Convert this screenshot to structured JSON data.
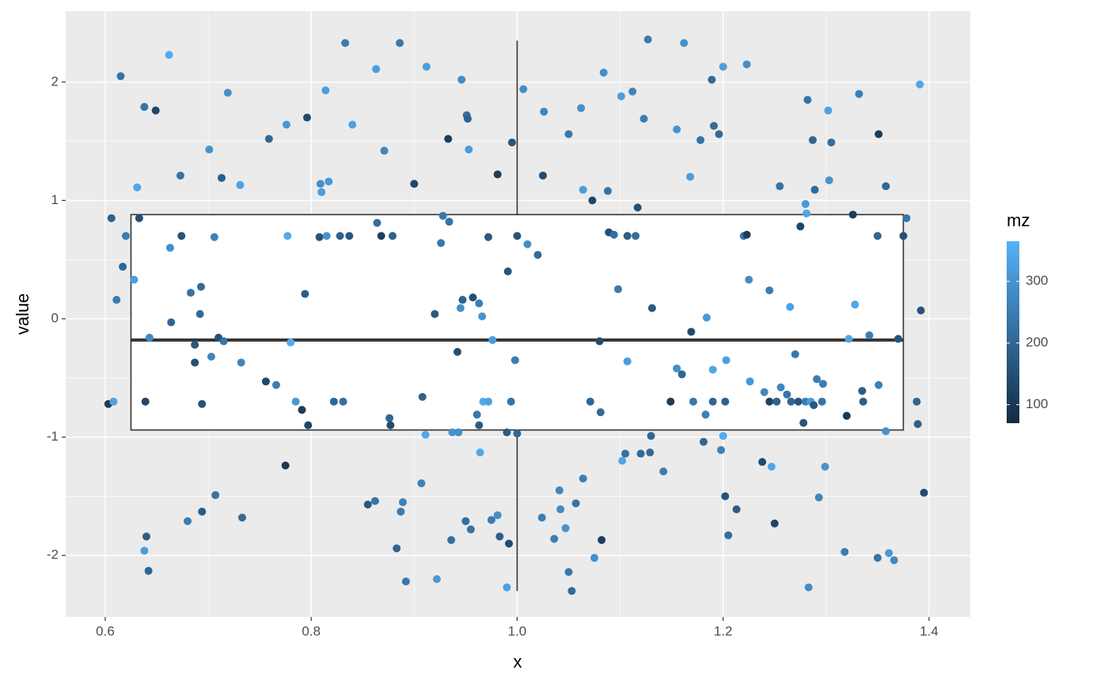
{
  "chart_data": {
    "type": "scatter",
    "xlabel": "x",
    "ylabel": "value",
    "xlim": [
      0.5616,
      1.44
    ],
    "ylim": [
      -2.52,
      2.6
    ],
    "xticks": [
      0.6,
      0.8,
      {
        "value": 1,
        "label": "1.0"
      },
      1.2,
      1.4
    ],
    "yticks": [
      -2,
      -1,
      0,
      1,
      2
    ],
    "grid": true,
    "minor_grid": true,
    "box": {
      "x": 1,
      "width": 0.75,
      "lower": -0.94,
      "median": -0.18,
      "upper": 0.88,
      "ymin": -2.3,
      "ymax": 2.35
    },
    "color_scale": {
      "name": "mz",
      "lim": [
        70,
        365
      ],
      "ticks": [
        100,
        200,
        300
      ],
      "low": "#132B43",
      "high": "#56B1F7"
    },
    "x": [
      0.603,
      0.606,
      0.608,
      0.611,
      0.615,
      0.617,
      0.62,
      0.628,
      0.631,
      0.633,
      0.638,
      0.638,
      0.639,
      0.64,
      0.642,
      0.643,
      0.649,
      0.662,
      0.663,
      0.664,
      0.673,
      0.674,
      0.68,
      0.683,
      0.687,
      0.687,
      0.692,
      0.693,
      0.694,
      0.694,
      0.701,
      0.703,
      0.706,
      0.707,
      0.71,
      0.713,
      0.715,
      0.719,
      0.731,
      0.732,
      0.733,
      0.756,
      0.759,
      0.766,
      0.775,
      0.776,
      0.777,
      0.78,
      0.785,
      0.791,
      0.794,
      0.796,
      0.797,
      0.808,
      0.809,
      0.81,
      0.814,
      0.815,
      0.817,
      0.822,
      0.828,
      0.831,
      0.833,
      0.837,
      0.84,
      0.855,
      0.862,
      0.863,
      0.864,
      0.868,
      0.871,
      0.876,
      0.877,
      0.879,
      0.883,
      0.886,
      0.887,
      0.889,
      0.892,
      0.9,
      0.907,
      0.908,
      0.911,
      0.912,
      0.92,
      0.922,
      0.926,
      0.928,
      0.933,
      0.934,
      0.936,
      0.937,
      0.942,
      0.943,
      0.945,
      0.946,
      0.947,
      0.95,
      0.951,
      0.952,
      0.953,
      0.955,
      0.957,
      0.961,
      0.963,
      0.963,
      0.964,
      0.966,
      0.967,
      0.972,
      0.972,
      0.975,
      0.976,
      0.981,
      0.981,
      0.983,
      0.99,
      0.99,
      0.991,
      0.992,
      0.994,
      0.995,
      0.998,
      1.0,
      1.0,
      1.006,
      1.01,
      1.02,
      1.024,
      1.025,
      1.026,
      1.036,
      1.041,
      1.042,
      1.047,
      1.05,
      1.05,
      1.053,
      1.057,
      1.062,
      1.064,
      1.064,
      1.071,
      1.073,
      1.075,
      1.08,
      1.081,
      1.082,
      1.084,
      1.088,
      1.089,
      1.094,
      1.098,
      1.101,
      1.102,
      1.105,
      1.107,
      1.107,
      1.112,
      1.115,
      1.117,
      1.12,
      1.123,
      1.127,
      1.129,
      1.13,
      1.131,
      1.142,
      1.149,
      1.155,
      1.155,
      1.16,
      1.162,
      1.168,
      1.169,
      1.171,
      1.178,
      1.181,
      1.183,
      1.184,
      1.189,
      1.19,
      1.191,
      1.19,
      1.196,
      1.198,
      1.2,
      1.2,
      1.202,
      1.202,
      1.203,
      1.205,
      1.213,
      1.22,
      1.223,
      1.223,
      1.225,
      1.226,
      1.238,
      1.24,
      1.245,
      1.245,
      1.247,
      1.25,
      1.252,
      1.255,
      1.256,
      1.262,
      1.265,
      1.266,
      1.27,
      1.273,
      1.275,
      1.278,
      1.28,
      1.28,
      1.281,
      1.282,
      1.283,
      1.285,
      1.287,
      1.288,
      1.289,
      1.291,
      1.293,
      1.296,
      1.297,
      1.299,
      1.302,
      1.303,
      1.305,
      1.318,
      1.32,
      1.322,
      1.326,
      1.328,
      1.332,
      1.335,
      1.336,
      1.342,
      1.35,
      1.35,
      1.351,
      1.351,
      1.358,
      1.358,
      1.361,
      1.366,
      1.37,
      1.375,
      1.378,
      1.388,
      1.389,
      1.391,
      1.392,
      1.395
    ],
    "values": [
      -0.72,
      0.85,
      -0.7,
      0.16,
      2.05,
      0.44,
      0.7,
      0.33,
      1.11,
      0.85,
      1.79,
      -1.96,
      -0.7,
      -1.84,
      -2.13,
      -0.16,
      1.76,
      2.23,
      0.6,
      -0.03,
      1.21,
      0.7,
      -1.71,
      0.22,
      -0.22,
      -0.37,
      0.04,
      0.27,
      -1.63,
      -0.72,
      1.43,
      -0.32,
      0.69,
      -1.49,
      -0.16,
      1.19,
      -0.19,
      1.91,
      1.13,
      -0.37,
      -1.68,
      -0.53,
      1.52,
      -0.56,
      -1.24,
      1.64,
      0.7,
      -0.2,
      -0.7,
      -0.77,
      0.21,
      1.7,
      -0.9,
      0.69,
      1.14,
      1.07,
      1.93,
      0.7,
      1.16,
      -0.7,
      0.7,
      -0.7,
      2.33,
      0.7,
      1.64,
      -1.57,
      -1.54,
      2.11,
      0.81,
      0.7,
      1.42,
      -0.84,
      -0.9,
      0.7,
      -1.94,
      2.33,
      -1.63,
      -1.55,
      -2.22,
      1.14,
      -1.39,
      -0.66,
      -0.98,
      2.13,
      0.04,
      -2.2,
      0.64,
      0.87,
      1.52,
      0.82,
      -1.87,
      -0.96,
      -0.28,
      -0.96,
      0.09,
      2.02,
      0.16,
      -1.71,
      1.72,
      1.69,
      1.43,
      -1.78,
      0.18,
      -0.81,
      -0.9,
      0.13,
      -1.13,
      0.02,
      -0.7,
      0.69,
      -0.7,
      -1.7,
      -0.18,
      1.22,
      -1.66,
      -1.84,
      -2.27,
      -0.96,
      0.4,
      -1.9,
      -0.7,
      1.49,
      -0.35,
      0.7,
      -0.97,
      1.94,
      0.63,
      0.54,
      -1.68,
      1.21,
      1.75,
      -1.86,
      -1.45,
      -1.61,
      -1.77,
      1.56,
      -2.14,
      -2.3,
      -1.56,
      1.78,
      -1.35,
      1.09,
      -0.7,
      1.0,
      -2.02,
      -0.19,
      -0.79,
      -1.87,
      2.08,
      1.08,
      0.73,
      0.71,
      0.25,
      1.88,
      -1.2,
      -1.14,
      -0.36,
      0.7,
      1.92,
      0.7,
      0.94,
      -1.14,
      1.69,
      2.36,
      -1.13,
      -0.99,
      0.09,
      -1.29,
      -0.7,
      -0.42,
      1.6,
      -0.47,
      2.33,
      1.2,
      -0.11,
      -0.7,
      1.51,
      -1.04,
      -0.81,
      0.01,
      2.02,
      -0.7,
      1.63,
      -0.43,
      1.56,
      -1.11,
      2.13,
      -0.99,
      -1.5,
      -0.7,
      -0.35,
      -1.83,
      -1.61,
      0.7,
      0.71,
      2.15,
      0.33,
      -0.53,
      -1.21,
      -0.62,
      -0.7,
      0.24,
      -1.25,
      -1.73,
      -0.7,
      1.12,
      -0.58,
      -0.64,
      0.1,
      -0.7,
      -0.3,
      -0.7,
      0.78,
      -0.88,
      0.97,
      -0.7,
      0.89,
      1.85,
      -2.27,
      -0.7,
      1.51,
      -0.73,
      1.09,
      -0.51,
      -1.51,
      -0.7,
      -0.55,
      -1.25,
      1.76,
      1.17,
      1.49,
      -1.97,
      -0.82,
      -0.17,
      0.88,
      0.12,
      1.9,
      -0.61,
      -0.7,
      -0.14,
      0.7,
      -2.02,
      -0.56,
      1.56,
      -0.95,
      1.12,
      -1.98,
      -2.04,
      -0.17,
      0.7,
      0.85,
      -0.7,
      -0.89,
      1.98,
      0.07,
      -1.47
    ],
    "mz": [
      110,
      190,
      330,
      250,
      230,
      200,
      250,
      320,
      340,
      150,
      230,
      320,
      130,
      180,
      200,
      280,
      130,
      350,
      290,
      200,
      230,
      160,
      250,
      230,
      170,
      150,
      210,
      210,
      180,
      160,
      300,
      270,
      260,
      230,
      150,
      180,
      230,
      290,
      330,
      270,
      210,
      130,
      200,
      250,
      100,
      310,
      350,
      350,
      310,
      110,
      180,
      140,
      130,
      160,
      290,
      320,
      320,
      300,
      310,
      200,
      190,
      220,
      250,
      170,
      330,
      170,
      230,
      320,
      220,
      120,
      270,
      200,
      140,
      190,
      200,
      240,
      250,
      260,
      240,
      130,
      260,
      190,
      340,
      320,
      170,
      310,
      240,
      240,
      110,
      230,
      220,
      300,
      150,
      290,
      290,
      280,
      190,
      220,
      220,
      190,
      320,
      230,
      150,
      240,
      180,
      250,
      340,
      300,
      350,
      170,
      330,
      250,
      320,
      110,
      290,
      190,
      330,
      180,
      160,
      140,
      230,
      170,
      250,
      160,
      200,
      290,
      290,
      210,
      250,
      140,
      270,
      250,
      270,
      280,
      300,
      240,
      240,
      210,
      230,
      290,
      250,
      320,
      200,
      130,
      290,
      140,
      210,
      110,
      290,
      230,
      150,
      220,
      240,
      320,
      340,
      220,
      320,
      180,
      270,
      220,
      150,
      210,
      250,
      250,
      210,
      200,
      170,
      250,
      110,
      290,
      300,
      200,
      290,
      320,
      140,
      240,
      230,
      200,
      260,
      310,
      210,
      200,
      210,
      340,
      210,
      260,
      320,
      350,
      160,
      190,
      330,
      220,
      180,
      240,
      110,
      290,
      280,
      310,
      140,
      270,
      120,
      250,
      340,
      130,
      190,
      230,
      270,
      230,
      330,
      200,
      240,
      160,
      130,
      160,
      310,
      250,
      340,
      230,
      290,
      320,
      200,
      170,
      210,
      250,
      270,
      230,
      250,
      300,
      330,
      300,
      220,
      250,
      100,
      340,
      110,
      340,
      250,
      180,
      180,
      250,
      200,
      230,
      260,
      110,
      300,
      200,
      310,
      280,
      160,
      150,
      230,
      200,
      180,
      340,
      160,
      140
    ]
  }
}
